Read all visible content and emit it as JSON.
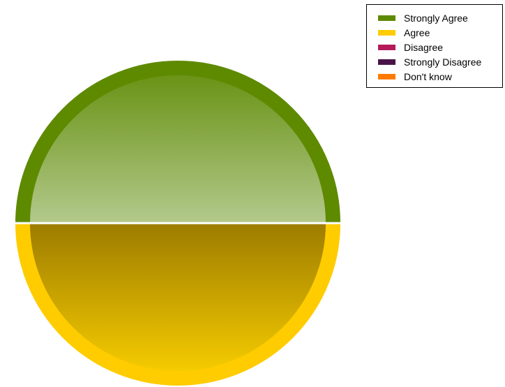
{
  "chart_data": {
    "type": "pie",
    "title": "",
    "categories": [
      "Strongly Agree",
      "Agree",
      "Disagree",
      "Strongly Disagree",
      "Don't know"
    ],
    "values": [
      50,
      50,
      0,
      0,
      0
    ],
    "colors": [
      "#5e8a00",
      "#ffcc00",
      "#b5195a",
      "#4a1347",
      "#ff7a00"
    ],
    "legend_position": "top-right",
    "grid": false
  }
}
